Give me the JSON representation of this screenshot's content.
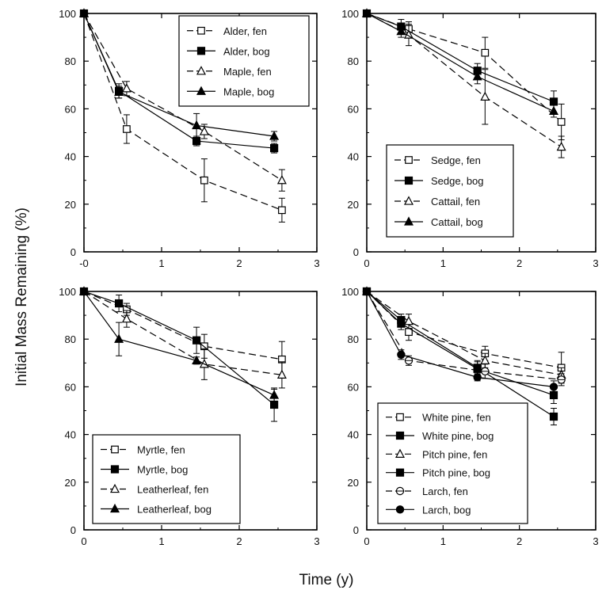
{
  "figure": {
    "ylabel": "Initial Mass Remaining (%)",
    "xlabel": "Time (y)"
  },
  "colors": {
    "ink": "#000000",
    "background": "#ffffff"
  },
  "chart_data": [
    {
      "type": "line",
      "panel": "top-left",
      "x_ticks": [
        "-0",
        "1",
        "2",
        "3"
      ],
      "y_ticks": [
        "0",
        "20",
        "40",
        "60",
        "80",
        "100"
      ],
      "xlim": [
        0,
        3
      ],
      "ylim": [
        0,
        100
      ],
      "legend_position": "top-right",
      "series": [
        {
          "name": "Alder, fen",
          "marker": "square-open",
          "dash": true,
          "x": [
            0,
            0.55,
            1.55,
            2.55
          ],
          "y": [
            100,
            51.5,
            30,
            17.5
          ],
          "err": [
            0,
            6,
            9,
            5
          ]
        },
        {
          "name": "Alder, bog",
          "marker": "square-filled",
          "dash": false,
          "x": [
            0,
            0.45,
            1.45,
            2.45
          ],
          "y": [
            100,
            67.5,
            46.5,
            43.5
          ],
          "err": [
            0,
            3,
            2,
            2
          ]
        },
        {
          "name": "Maple, fen",
          "marker": "triangle-open",
          "dash": true,
          "x": [
            0,
            0.55,
            1.55,
            2.55
          ],
          "y": [
            100,
            68.5,
            50.5,
            30
          ],
          "err": [
            0,
            3,
            3,
            4.5
          ]
        },
        {
          "name": "Maple, bog",
          "marker": "triangle-filled",
          "dash": false,
          "x": [
            0,
            0.45,
            1.45,
            2.45
          ],
          "y": [
            100,
            67,
            53,
            48.5
          ],
          "err": [
            0,
            2.5,
            5,
            2
          ]
        }
      ]
    },
    {
      "type": "line",
      "panel": "top-right",
      "x_ticks": [
        "0",
        "1",
        "2",
        "3"
      ],
      "y_ticks": [
        "0",
        "20",
        "40",
        "60",
        "80",
        "100"
      ],
      "xlim": [
        0,
        3
      ],
      "ylim": [
        0,
        100
      ],
      "legend_position": "bottom-right",
      "series": [
        {
          "name": "Sedge, fen",
          "marker": "square-open",
          "dash": true,
          "x": [
            0,
            0.55,
            1.55,
            2.55
          ],
          "y": [
            100,
            93.5,
            83.5,
            54.5
          ],
          "err": [
            0,
            3,
            6.5,
            7.5
          ]
        },
        {
          "name": "Sedge, bog",
          "marker": "square-filled",
          "dash": false,
          "x": [
            0,
            0.45,
            1.45,
            2.45
          ],
          "y": [
            100,
            94.5,
            76,
            63
          ],
          "err": [
            0,
            3,
            3,
            4.5
          ]
        },
        {
          "name": "Cattail, fen",
          "marker": "triangle-open",
          "dash": true,
          "x": [
            0,
            0.55,
            1.55,
            2.55
          ],
          "y": [
            100,
            91,
            65,
            44
          ],
          "err": [
            0,
            4.5,
            11.5,
            4.5
          ]
        },
        {
          "name": "Cattail, bog",
          "marker": "triangle-filled",
          "dash": false,
          "x": [
            0,
            0.45,
            1.45,
            2.45
          ],
          "y": [
            100,
            92.5,
            73.5,
            59
          ],
          "err": [
            0,
            2.5,
            3,
            2.5
          ]
        }
      ]
    },
    {
      "type": "line",
      "panel": "bottom-left",
      "x_ticks": [
        "0",
        "1",
        "2",
        "3"
      ],
      "y_ticks": [
        "0",
        "20",
        "40",
        "60",
        "80",
        "100"
      ],
      "xlim": [
        0,
        3
      ],
      "ylim": [
        0,
        100
      ],
      "legend_position": "bottom-right",
      "series": [
        {
          "name": "Myrtle, fen",
          "marker": "square-open",
          "dash": true,
          "x": [
            0,
            0.55,
            1.55,
            2.55
          ],
          "y": [
            100,
            92.5,
            77,
            71.5
          ],
          "err": [
            0,
            2.5,
            5,
            7.5
          ]
        },
        {
          "name": "Myrtle, bog",
          "marker": "square-filled",
          "dash": false,
          "x": [
            0,
            0.45,
            1.45,
            2.45
          ],
          "y": [
            100,
            95,
            79.5,
            52.5
          ],
          "err": [
            0,
            3.5,
            5.5,
            7
          ]
        },
        {
          "name": "Leatherleaf, fen",
          "marker": "triangle-open",
          "dash": true,
          "x": [
            0,
            0.55,
            1.55,
            2.55
          ],
          "y": [
            100,
            88.5,
            69.5,
            65
          ],
          "err": [
            0,
            3.5,
            6.5,
            5.5
          ]
        },
        {
          "name": "Leatherleaf, bog",
          "marker": "triangle-filled",
          "dash": false,
          "x": [
            0,
            0.45,
            1.45,
            2.45
          ],
          "y": [
            100,
            80,
            71,
            56.5
          ],
          "err": [
            0,
            7,
            1.5,
            2.5
          ]
        }
      ]
    },
    {
      "type": "line",
      "panel": "bottom-right",
      "x_ticks": [
        "0",
        "1",
        "2",
        "3"
      ],
      "y_ticks": [
        "0",
        "20",
        "40",
        "60",
        "80",
        "100"
      ],
      "xlim": [
        0,
        3
      ],
      "ylim": [
        0,
        100
      ],
      "legend_position": "bottom-right",
      "series": [
        {
          "name": "White pine, fen",
          "marker": "square-open",
          "dash": true,
          "x": [
            0,
            0.55,
            1.55,
            2.55
          ],
          "y": [
            100,
            83,
            74,
            68
          ],
          "err": [
            0,
            3.5,
            3,
            6.5
          ]
        },
        {
          "name": "White pine, bog",
          "marker": "square-filled",
          "dash": false,
          "x": [
            0,
            0.45,
            1.45,
            2.45
          ],
          "y": [
            100,
            88,
            68,
            47.5
          ],
          "err": [
            0,
            2.5,
            3,
            3.5
          ]
        },
        {
          "name": "Pitch pine, fen",
          "marker": "triangle-open",
          "dash": true,
          "x": [
            0,
            0.55,
            1.55,
            2.55
          ],
          "y": [
            100,
            87.5,
            71,
            65
          ],
          "err": [
            0,
            3,
            3,
            3
          ]
        },
        {
          "name": "Pitch pine, bog",
          "marker": "square-filled",
          "dash": false,
          "x": [
            0,
            0.45,
            1.45,
            2.45
          ],
          "y": [
            100,
            86.5,
            67.5,
            56.5
          ],
          "err": [
            0,
            2.5,
            3,
            3.5
          ]
        },
        {
          "name": "Larch, fen",
          "marker": "circle-open",
          "dash": true,
          "x": [
            0,
            0.55,
            1.55,
            2.55
          ],
          "y": [
            100,
            71,
            66.5,
            63
          ],
          "err": [
            0,
            2,
            3,
            2.5
          ]
        },
        {
          "name": "Larch, bog",
          "marker": "circle-filled",
          "dash": false,
          "x": [
            0,
            0.45,
            1.45,
            2.45
          ],
          "y": [
            100,
            73.5,
            64,
            60
          ],
          "err": [
            0,
            2,
            1.5,
            2.5
          ]
        }
      ]
    }
  ]
}
